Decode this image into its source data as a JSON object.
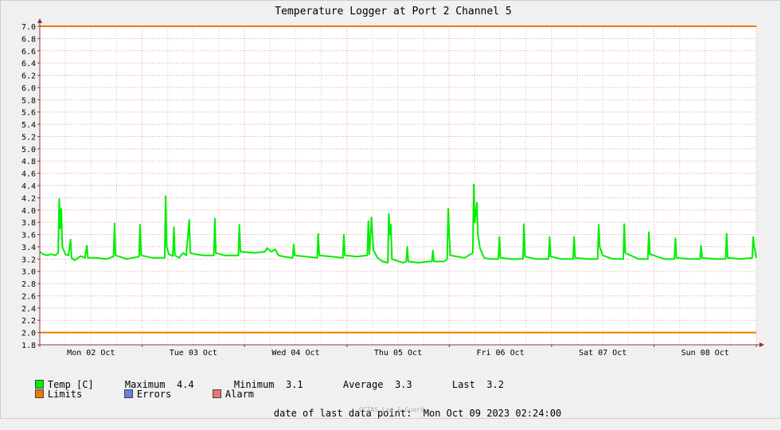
{
  "chart_data": {
    "type": "line",
    "title": "Temperature Logger at Port 2 Channel 5",
    "ylim": [
      1.8,
      7.0
    ],
    "yticks": [
      "1.8",
      "2.0",
      "2.2",
      "2.4",
      "2.6",
      "2.8",
      "3.0",
      "3.2",
      "3.4",
      "3.6",
      "3.8",
      "4.0",
      "4.2",
      "4.4",
      "4.6",
      "4.8",
      "5.0",
      "5.2",
      "5.4",
      "5.6",
      "5.8",
      "6.0",
      "6.2",
      "6.4",
      "6.6",
      "6.8",
      "7.0"
    ],
    "xrange": [
      0,
      7
    ],
    "xunit": "days from start of Mon 02 Oct",
    "xticks": [
      {
        "x": 0.5,
        "label": "Mon 02 Oct"
      },
      {
        "x": 1.5,
        "label": "Tue 03 Oct"
      },
      {
        "x": 2.5,
        "label": "Wed 04 Oct"
      },
      {
        "x": 3.5,
        "label": "Thu 05 Oct"
      },
      {
        "x": 4.5,
        "label": "Fri 06 Oct"
      },
      {
        "x": 5.5,
        "label": "Sat 07 Oct"
      },
      {
        "x": 6.5,
        "label": "Sun 08 Oct"
      }
    ],
    "limits": [
      2.0,
      7.0
    ],
    "colors": {
      "temp": "#00ee00",
      "limits": "#ee7700",
      "errors": "#6a7fe6",
      "alarm": "#f07070",
      "grid": "#c8c8c8",
      "daygrid": "#e8a0a0",
      "axis": "#993333"
    },
    "series": [
      {
        "name": "Temp [C]",
        "points": [
          [
            0.0,
            3.32
          ],
          [
            0.03,
            3.28
          ],
          [
            0.07,
            3.26
          ],
          [
            0.11,
            3.28
          ],
          [
            0.15,
            3.26
          ],
          [
            0.18,
            3.3
          ],
          [
            0.19,
            4.18
          ],
          [
            0.2,
            3.7
          ],
          [
            0.21,
            4.02
          ],
          [
            0.22,
            3.4
          ],
          [
            0.25,
            3.28
          ],
          [
            0.28,
            3.26
          ],
          [
            0.3,
            3.52
          ],
          [
            0.31,
            3.22
          ],
          [
            0.34,
            3.18
          ],
          [
            0.4,
            3.25
          ],
          [
            0.44,
            3.22
          ],
          [
            0.46,
            3.42
          ],
          [
            0.47,
            3.22
          ],
          [
            0.55,
            3.22
          ],
          [
            0.65,
            3.2
          ],
          [
            0.72,
            3.24
          ],
          [
            0.73,
            3.78
          ],
          [
            0.74,
            3.26
          ],
          [
            0.85,
            3.2
          ],
          [
            0.97,
            3.24
          ],
          [
            0.98,
            3.76
          ],
          [
            0.99,
            3.26
          ],
          [
            1.1,
            3.22
          ],
          [
            1.22,
            3.22
          ],
          [
            1.23,
            4.23
          ],
          [
            1.24,
            3.4
          ],
          [
            1.26,
            3.28
          ],
          [
            1.3,
            3.25
          ],
          [
            1.31,
            3.72
          ],
          [
            1.32,
            3.26
          ],
          [
            1.36,
            3.22
          ],
          [
            1.4,
            3.3
          ],
          [
            1.43,
            3.26
          ],
          [
            1.46,
            3.84
          ],
          [
            1.47,
            3.3
          ],
          [
            1.52,
            3.28
          ],
          [
            1.6,
            3.26
          ],
          [
            1.7,
            3.26
          ],
          [
            1.71,
            3.86
          ],
          [
            1.72,
            3.3
          ],
          [
            1.8,
            3.26
          ],
          [
            1.94,
            3.26
          ],
          [
            1.95,
            3.76
          ],
          [
            1.96,
            3.32
          ],
          [
            2.1,
            3.3
          ],
          [
            2.2,
            3.32
          ],
          [
            2.22,
            3.38
          ],
          [
            2.26,
            3.32
          ],
          [
            2.3,
            3.36
          ],
          [
            2.33,
            3.26
          ],
          [
            2.38,
            3.24
          ],
          [
            2.47,
            3.22
          ],
          [
            2.48,
            3.44
          ],
          [
            2.49,
            3.26
          ],
          [
            2.6,
            3.24
          ],
          [
            2.71,
            3.22
          ],
          [
            2.72,
            3.61
          ],
          [
            2.73,
            3.26
          ],
          [
            2.85,
            3.24
          ],
          [
            2.96,
            3.22
          ],
          [
            2.97,
            3.6
          ],
          [
            2.98,
            3.26
          ],
          [
            3.1,
            3.24
          ],
          [
            3.2,
            3.26
          ],
          [
            3.21,
            3.82
          ],
          [
            3.22,
            3.28
          ],
          [
            3.24,
            3.88
          ],
          [
            3.25,
            3.6
          ],
          [
            3.26,
            3.34
          ],
          [
            3.3,
            3.22
          ],
          [
            3.35,
            3.16
          ],
          [
            3.4,
            3.14
          ],
          [
            3.41,
            3.94
          ],
          [
            3.42,
            3.6
          ],
          [
            3.43,
            3.76
          ],
          [
            3.44,
            3.2
          ],
          [
            3.55,
            3.14
          ],
          [
            3.58,
            3.16
          ],
          [
            3.59,
            3.4
          ],
          [
            3.6,
            3.16
          ],
          [
            3.7,
            3.14
          ],
          [
            3.8,
            3.16
          ],
          [
            3.83,
            3.16
          ],
          [
            3.84,
            3.34
          ],
          [
            3.85,
            3.16
          ],
          [
            3.95,
            3.16
          ],
          [
            3.98,
            3.2
          ],
          [
            3.99,
            4.02
          ],
          [
            4.0,
            3.6
          ],
          [
            4.01,
            3.26
          ],
          [
            4.15,
            3.22
          ],
          [
            4.23,
            3.3
          ],
          [
            4.24,
            4.42
          ],
          [
            4.25,
            3.8
          ],
          [
            4.27,
            4.12
          ],
          [
            4.28,
            3.6
          ],
          [
            4.3,
            3.38
          ],
          [
            4.34,
            3.22
          ],
          [
            4.4,
            3.2
          ],
          [
            4.48,
            3.2
          ],
          [
            4.49,
            3.56
          ],
          [
            4.5,
            3.22
          ],
          [
            4.6,
            3.2
          ],
          [
            4.72,
            3.2
          ],
          [
            4.73,
            3.77
          ],
          [
            4.74,
            3.24
          ],
          [
            4.85,
            3.2
          ],
          [
            4.97,
            3.2
          ],
          [
            4.98,
            3.56
          ],
          [
            4.99,
            3.24
          ],
          [
            5.1,
            3.2
          ],
          [
            5.21,
            3.2
          ],
          [
            5.22,
            3.56
          ],
          [
            5.23,
            3.22
          ],
          [
            5.35,
            3.2
          ],
          [
            5.45,
            3.2
          ],
          [
            5.46,
            3.76
          ],
          [
            5.47,
            3.4
          ],
          [
            5.5,
            3.26
          ],
          [
            5.6,
            3.2
          ],
          [
            5.7,
            3.2
          ],
          [
            5.71,
            3.77
          ],
          [
            5.72,
            3.3
          ],
          [
            5.85,
            3.2
          ],
          [
            5.94,
            3.2
          ],
          [
            5.95,
            3.64
          ],
          [
            5.96,
            3.28
          ],
          [
            6.1,
            3.2
          ],
          [
            6.2,
            3.2
          ],
          [
            6.21,
            3.54
          ],
          [
            6.22,
            3.22
          ],
          [
            6.35,
            3.2
          ],
          [
            6.45,
            3.2
          ],
          [
            6.46,
            3.42
          ],
          [
            6.47,
            3.22
          ],
          [
            6.6,
            3.2
          ],
          [
            6.7,
            3.2
          ],
          [
            6.71,
            3.61
          ],
          [
            6.72,
            3.22
          ],
          [
            6.85,
            3.2
          ],
          [
            6.96,
            3.22
          ],
          [
            6.97,
            3.56
          ],
          [
            6.98,
            3.4
          ],
          [
            7.0,
            3.22
          ]
        ]
      }
    ]
  },
  "legend": {
    "temp_label": "Temp [C]",
    "max_label": "Maximum",
    "max_value": "4.4",
    "min_label": "Minimum",
    "min_value": "3.1",
    "avg_label": "Average",
    "avg_value": "3.3",
    "last_label": "Last",
    "last_value": "3.2",
    "limits_label": "Limits",
    "errors_label": "Errors",
    "alarm_label": "Alarm"
  },
  "footer": {
    "last_point_label": "date of last data point:",
    "last_point_value": "Mon Oct 09 2023 02:24:00",
    "brand": "OCTAS Log & Guard"
  }
}
